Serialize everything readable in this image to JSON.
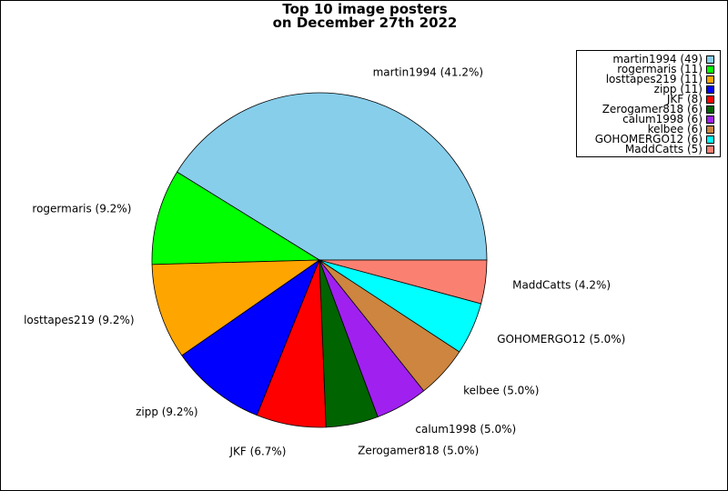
{
  "chart_data": {
    "type": "pie",
    "title": [
      "Top 10 image posters",
      "on December 27th 2022"
    ],
    "start_angle_deg": 0,
    "direction": "counterclockwise",
    "legend_position": "top-right",
    "slices": [
      {
        "label": "martin1994",
        "value": 49,
        "pct_label": "41.2%",
        "legend_label": "martin1994 (49)",
        "color": "#87ceeb"
      },
      {
        "label": "rogermaris",
        "value": 11,
        "pct_label": "9.2%",
        "legend_label": "rogermaris (11)",
        "color": "#00ff00"
      },
      {
        "label": "losttapes219",
        "value": 11,
        "pct_label": "9.2%",
        "legend_label": "losttapes219 (11)",
        "color": "#ffa500"
      },
      {
        "label": "zipp",
        "value": 11,
        "pct_label": "9.2%",
        "legend_label": "zipp (11)",
        "color": "#0000ff"
      },
      {
        "label": "JKF",
        "value": 8,
        "pct_label": "6.7%",
        "legend_label": "JKF (8)",
        "color": "#ff0000"
      },
      {
        "label": "Zerogamer818",
        "value": 6,
        "pct_label": "5.0%",
        "legend_label": "Zerogamer818 (6)",
        "color": "#006400"
      },
      {
        "label": "calum1998",
        "value": 6,
        "pct_label": "5.0%",
        "legend_label": "calum1998 (6)",
        "color": "#a020f0"
      },
      {
        "label": "kelbee",
        "value": 6,
        "pct_label": "5.0%",
        "legend_label": "kelbee (6)",
        "color": "#cd853f"
      },
      {
        "label": "GOHOMERGO12",
        "value": 6,
        "pct_label": "5.0%",
        "legend_label": "GOHOMERGO12 (6)",
        "color": "#00ffff"
      },
      {
        "label": "MaddCatts",
        "value": 5,
        "pct_label": "4.2%",
        "legend_label": "MaddCatts (5)",
        "color": "#fa8072"
      }
    ]
  }
}
